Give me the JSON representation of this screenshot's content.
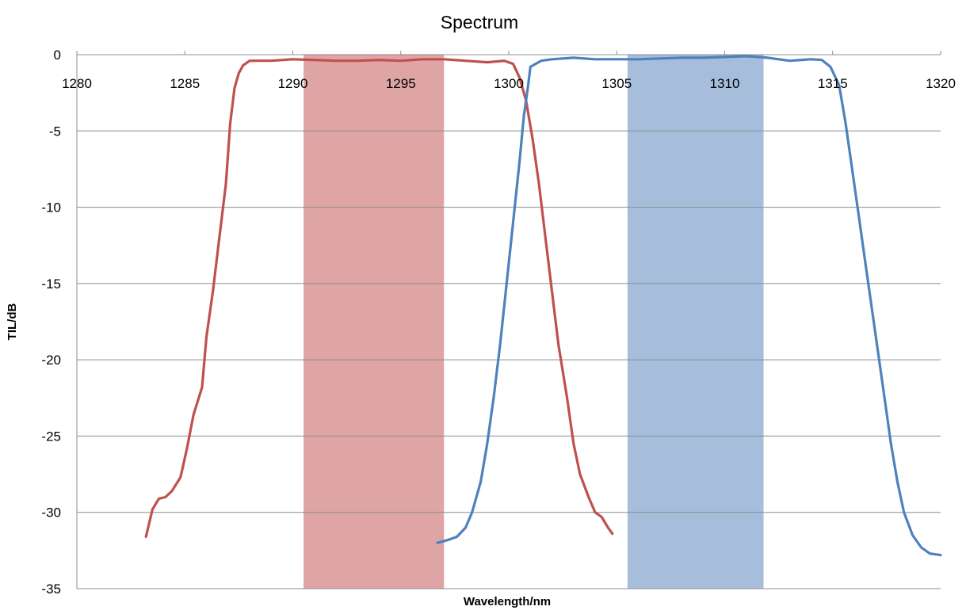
{
  "chart_data": {
    "type": "line",
    "title": "Spectrum",
    "xlabel": "Wavelength/nm",
    "ylabel": "TIL/dB",
    "xlim": [
      1280,
      1320
    ],
    "ylim": [
      -35,
      0
    ],
    "x_ticks": [
      1280,
      1285,
      1290,
      1295,
      1300,
      1305,
      1310,
      1315,
      1320
    ],
    "y_ticks": [
      0,
      -5,
      -10,
      -15,
      -20,
      -25,
      -30,
      -35
    ],
    "grid": "horizontal",
    "x_axis_position": "top",
    "legend": "none",
    "bands": [
      {
        "x0": 1290.5,
        "x1": 1297.0,
        "color": "#dea5a4"
      },
      {
        "x0": 1305.5,
        "x1": 1311.8,
        "color": "#a6bedc"
      }
    ],
    "series": [
      {
        "color": "#c0504d",
        "points": [
          [
            1283.2,
            -31.6
          ],
          [
            1283.5,
            -29.8
          ],
          [
            1283.8,
            -29.1
          ],
          [
            1284.1,
            -29.0
          ],
          [
            1284.4,
            -28.6
          ],
          [
            1284.8,
            -27.7
          ],
          [
            1285.1,
            -25.8
          ],
          [
            1285.4,
            -23.6
          ],
          [
            1285.8,
            -21.8
          ],
          [
            1286.0,
            -18.5
          ],
          [
            1286.3,
            -15.5
          ],
          [
            1286.6,
            -12.0
          ],
          [
            1286.9,
            -8.5
          ],
          [
            1287.1,
            -4.5
          ],
          [
            1287.3,
            -2.2
          ],
          [
            1287.5,
            -1.2
          ],
          [
            1287.7,
            -0.7
          ],
          [
            1288.0,
            -0.4
          ],
          [
            1289.0,
            -0.4
          ],
          [
            1290.0,
            -0.3
          ],
          [
            1291.0,
            -0.35
          ],
          [
            1292.0,
            -0.4
          ],
          [
            1293.0,
            -0.4
          ],
          [
            1294.0,
            -0.35
          ],
          [
            1295.0,
            -0.4
          ],
          [
            1296.0,
            -0.3
          ],
          [
            1297.0,
            -0.3
          ],
          [
            1298.0,
            -0.4
          ],
          [
            1299.0,
            -0.5
          ],
          [
            1299.8,
            -0.4
          ],
          [
            1300.2,
            -0.6
          ],
          [
            1300.5,
            -1.5
          ],
          [
            1300.8,
            -3.0
          ],
          [
            1301.1,
            -5.5
          ],
          [
            1301.4,
            -8.5
          ],
          [
            1301.7,
            -12.0
          ],
          [
            1302.0,
            -15.5
          ],
          [
            1302.3,
            -19.0
          ],
          [
            1302.7,
            -22.5
          ],
          [
            1303.0,
            -25.5
          ],
          [
            1303.3,
            -27.5
          ],
          [
            1303.7,
            -29.0
          ],
          [
            1304.0,
            -30.0
          ],
          [
            1304.3,
            -30.3
          ],
          [
            1304.6,
            -31.0
          ],
          [
            1304.8,
            -31.4
          ]
        ]
      },
      {
        "color": "#4f81bd",
        "points": [
          [
            1296.7,
            -32.0
          ],
          [
            1297.2,
            -31.8
          ],
          [
            1297.6,
            -31.6
          ],
          [
            1298.0,
            -31.0
          ],
          [
            1298.3,
            -30.0
          ],
          [
            1298.7,
            -28.0
          ],
          [
            1299.0,
            -25.5
          ],
          [
            1299.3,
            -22.5
          ],
          [
            1299.6,
            -19.0
          ],
          [
            1299.9,
            -15.0
          ],
          [
            1300.2,
            -11.0
          ],
          [
            1300.5,
            -7.0
          ],
          [
            1300.7,
            -4.0
          ],
          [
            1300.9,
            -2.0
          ],
          [
            1301.0,
            -0.8
          ],
          [
            1301.5,
            -0.4
          ],
          [
            1302.0,
            -0.3
          ],
          [
            1303.0,
            -0.2
          ],
          [
            1304.0,
            -0.3
          ],
          [
            1305.0,
            -0.3
          ],
          [
            1306.0,
            -0.3
          ],
          [
            1307.0,
            -0.25
          ],
          [
            1308.0,
            -0.2
          ],
          [
            1309.0,
            -0.2
          ],
          [
            1310.0,
            -0.15
          ],
          [
            1311.0,
            -0.1
          ],
          [
            1312.0,
            -0.2
          ],
          [
            1313.0,
            -0.4
          ],
          [
            1314.0,
            -0.3
          ],
          [
            1314.5,
            -0.35
          ],
          [
            1314.9,
            -0.8
          ],
          [
            1315.3,
            -2.0
          ],
          [
            1315.6,
            -4.5
          ],
          [
            1315.9,
            -7.5
          ],
          [
            1316.2,
            -10.5
          ],
          [
            1316.5,
            -13.5
          ],
          [
            1316.8,
            -16.5
          ],
          [
            1317.1,
            -19.5
          ],
          [
            1317.4,
            -22.5
          ],
          [
            1317.7,
            -25.5
          ],
          [
            1318.0,
            -28.0
          ],
          [
            1318.3,
            -30.0
          ],
          [
            1318.7,
            -31.5
          ],
          [
            1319.1,
            -32.3
          ],
          [
            1319.5,
            -32.7
          ],
          [
            1320.0,
            -32.8
          ]
        ]
      }
    ]
  }
}
